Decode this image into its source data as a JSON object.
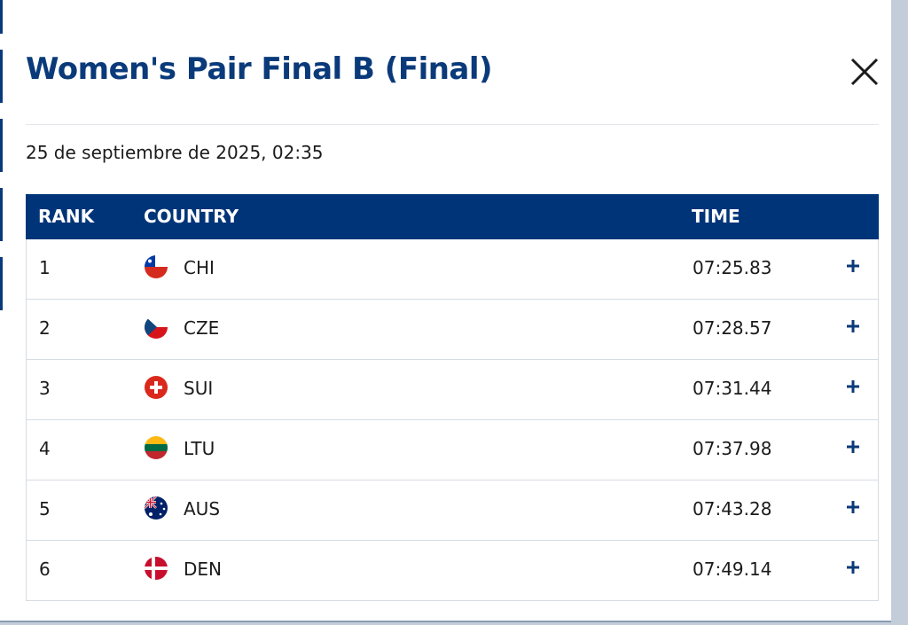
{
  "modal": {
    "title": "Women's Pair Final B (Final)",
    "date": "25 de septiembre de 2025, 02:35",
    "table": {
      "headers": [
        "RANK",
        "COUNTRY",
        "TIME"
      ],
      "rows": [
        [
          "1",
          "CHI",
          "07:25.83"
        ],
        [
          "2",
          "CZE",
          "07:28.57"
        ],
        [
          "3",
          "SUI",
          "07:31.44"
        ],
        [
          "4",
          "LTU",
          "07:37.98"
        ],
        [
          "5",
          "AUS",
          "07:43.28"
        ],
        [
          "6",
          "DEN",
          "07:49.14"
        ]
      ]
    }
  }
}
